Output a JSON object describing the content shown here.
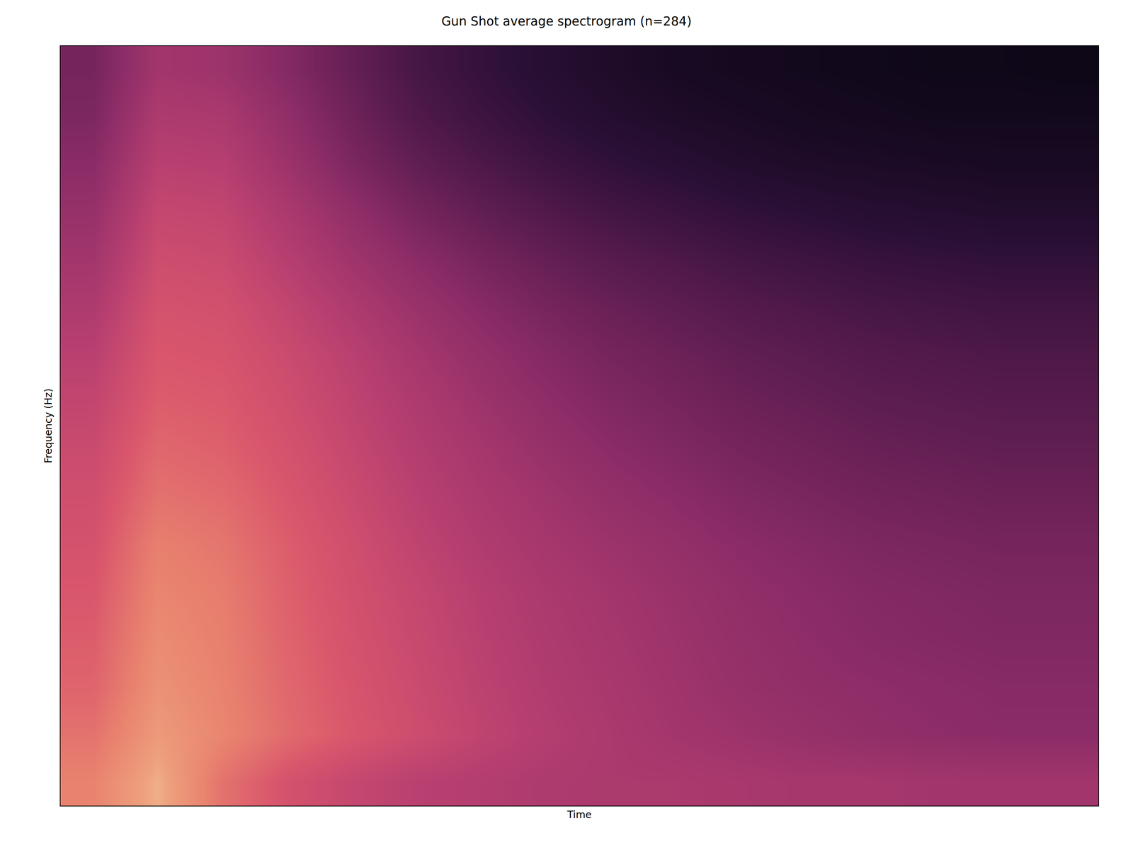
{
  "chart_data": {
    "type": "heatmap",
    "title": "Gun Shot average spectrogram (n=284)",
    "x_label": "Time",
    "y_label": "Frequency (Hz)",
    "tick_labels": false,
    "zlim": [
      0,
      1
    ],
    "cells": [
      [
        0.85,
        0.98,
        0.8,
        0.7,
        0.64,
        0.6,
        0.58,
        0.56,
        0.55,
        0.55,
        0.54,
        0.53,
        0.53,
        0.52,
        0.52,
        0.52
      ],
      [
        0.8,
        0.93,
        0.86,
        0.78,
        0.72,
        0.67,
        0.62,
        0.58,
        0.55,
        0.52,
        0.5,
        0.48,
        0.46,
        0.45,
        0.44,
        0.44
      ],
      [
        0.76,
        0.9,
        0.85,
        0.77,
        0.71,
        0.66,
        0.61,
        0.57,
        0.54,
        0.51,
        0.48,
        0.46,
        0.45,
        0.44,
        0.43,
        0.43
      ],
      [
        0.74,
        0.88,
        0.84,
        0.76,
        0.7,
        0.65,
        0.6,
        0.56,
        0.53,
        0.5,
        0.47,
        0.45,
        0.43,
        0.42,
        0.41,
        0.41
      ],
      [
        0.72,
        0.86,
        0.83,
        0.75,
        0.69,
        0.64,
        0.59,
        0.55,
        0.52,
        0.49,
        0.46,
        0.44,
        0.42,
        0.41,
        0.4,
        0.4
      ],
      [
        0.7,
        0.84,
        0.81,
        0.74,
        0.68,
        0.62,
        0.57,
        0.53,
        0.5,
        0.47,
        0.44,
        0.42,
        0.4,
        0.39,
        0.38,
        0.38
      ],
      [
        0.68,
        0.8,
        0.78,
        0.72,
        0.66,
        0.6,
        0.55,
        0.51,
        0.47,
        0.44,
        0.41,
        0.39,
        0.37,
        0.36,
        0.35,
        0.35
      ],
      [
        0.66,
        0.77,
        0.75,
        0.7,
        0.64,
        0.58,
        0.53,
        0.48,
        0.44,
        0.41,
        0.38,
        0.36,
        0.34,
        0.33,
        0.32,
        0.32
      ],
      [
        0.63,
        0.74,
        0.73,
        0.68,
        0.62,
        0.56,
        0.5,
        0.45,
        0.41,
        0.38,
        0.35,
        0.33,
        0.31,
        0.3,
        0.29,
        0.29
      ],
      [
        0.6,
        0.72,
        0.71,
        0.66,
        0.6,
        0.53,
        0.47,
        0.42,
        0.38,
        0.35,
        0.32,
        0.3,
        0.28,
        0.27,
        0.26,
        0.26
      ],
      [
        0.56,
        0.7,
        0.69,
        0.63,
        0.56,
        0.49,
        0.43,
        0.38,
        0.34,
        0.31,
        0.28,
        0.26,
        0.24,
        0.23,
        0.22,
        0.22
      ],
      [
        0.52,
        0.67,
        0.66,
        0.59,
        0.51,
        0.44,
        0.38,
        0.33,
        0.29,
        0.26,
        0.23,
        0.21,
        0.19,
        0.18,
        0.17,
        0.17
      ],
      [
        0.48,
        0.64,
        0.63,
        0.55,
        0.46,
        0.38,
        0.32,
        0.27,
        0.23,
        0.2,
        0.17,
        0.15,
        0.13,
        0.12,
        0.11,
        0.11
      ],
      [
        0.44,
        0.6,
        0.59,
        0.5,
        0.4,
        0.32,
        0.26,
        0.21,
        0.17,
        0.14,
        0.11,
        0.09,
        0.08,
        0.07,
        0.06,
        0.06
      ],
      [
        0.4,
        0.56,
        0.55,
        0.46,
        0.36,
        0.27,
        0.21,
        0.16,
        0.12,
        0.09,
        0.07,
        0.05,
        0.04,
        0.03,
        0.03,
        0.03
      ],
      [
        0.38,
        0.52,
        0.5,
        0.42,
        0.33,
        0.24,
        0.18,
        0.13,
        0.09,
        0.06,
        0.04,
        0.03,
        0.02,
        0.01,
        0.01,
        0.0
      ]
    ]
  }
}
